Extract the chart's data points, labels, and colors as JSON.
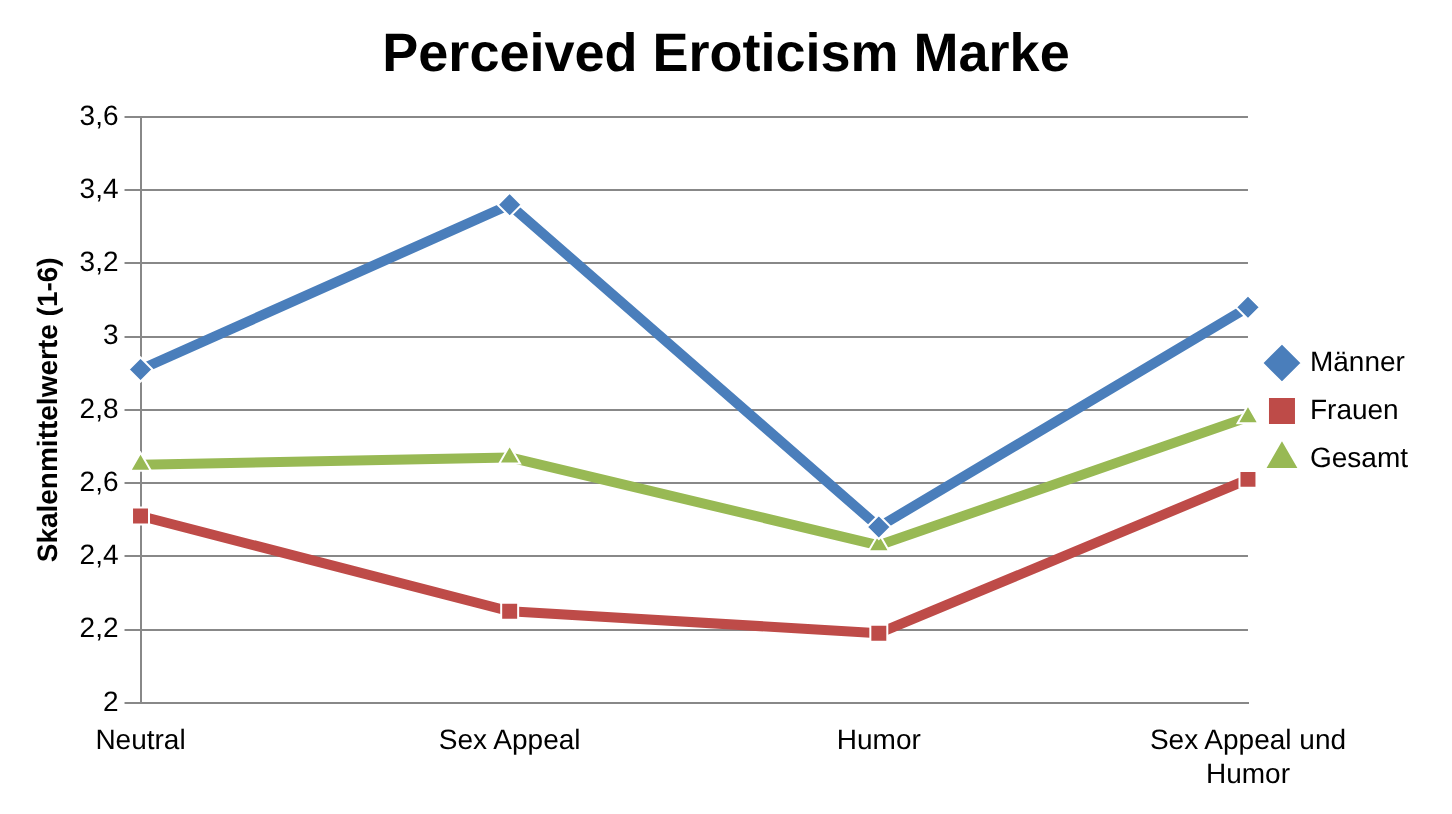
{
  "chart_data": {
    "type": "line",
    "title": "Perceived Eroticism Marke",
    "ylabel": "Skalenmittelwerte (1-6)",
    "categories": [
      "Neutral",
      "Sex Appeal",
      "Humor",
      "Sex Appeal und Humor"
    ],
    "series": [
      {
        "name": "Männer",
        "color": "#4a7ebb",
        "marker": "diamond",
        "values": [
          2.91,
          3.36,
          2.48,
          3.08
        ]
      },
      {
        "name": "Frauen",
        "color": "#be4b48",
        "marker": "square",
        "values": [
          2.51,
          2.25,
          2.19,
          2.61
        ]
      },
      {
        "name": "Gesamt",
        "color": "#98b954",
        "marker": "triangle",
        "values": [
          2.65,
          2.67,
          2.43,
          2.78
        ]
      }
    ],
    "ylim": [
      2,
      3.6
    ],
    "yticks": [
      2,
      {
        "value": 2.2,
        "label": "2,2"
      },
      {
        "value": 2.4,
        "label": "2,4"
      },
      {
        "value": 2.6,
        "label": "2,6"
      },
      {
        "value": 2.8,
        "label": "2,8"
      },
      3,
      {
        "value": 3.2,
        "label": "3,2"
      },
      {
        "value": 3.4,
        "label": "3,4"
      },
      {
        "value": 3.6,
        "label": "3,6"
      }
    ],
    "grid": "y",
    "legend": "right"
  }
}
